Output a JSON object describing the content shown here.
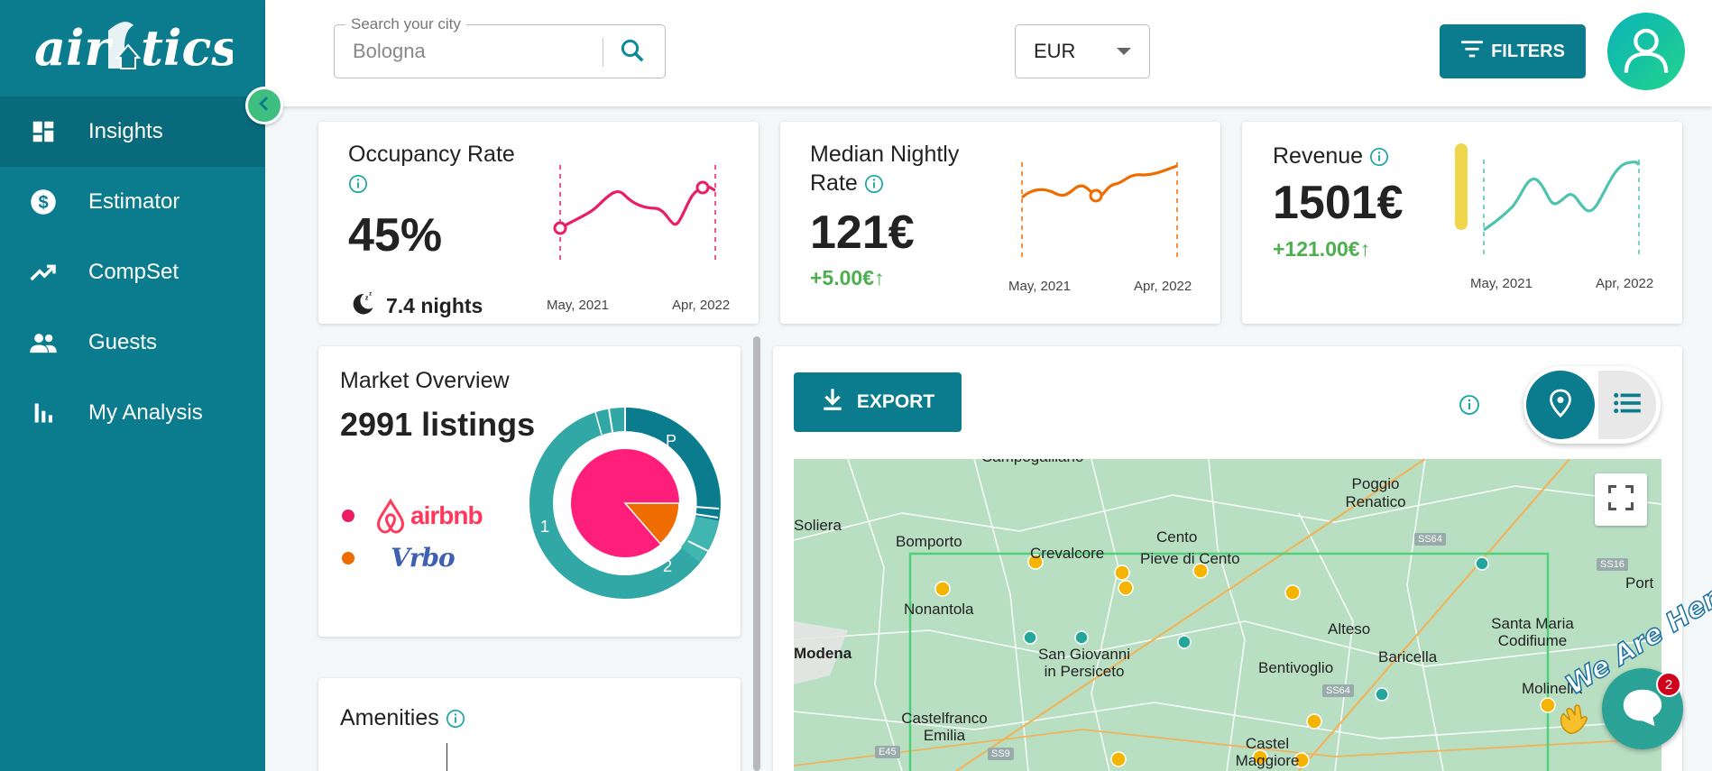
{
  "app": {
    "logo_text": "airbtics"
  },
  "sidebar": {
    "items": [
      {
        "label": "Insights",
        "icon": "dashboard-icon",
        "active": true
      },
      {
        "label": "Estimator",
        "icon": "dollar-icon"
      },
      {
        "label": "CompSet",
        "icon": "trending-up-icon"
      },
      {
        "label": "Guests",
        "icon": "people-icon"
      },
      {
        "label": "My Analysis",
        "icon": "bar-chart-icon"
      }
    ]
  },
  "header": {
    "search_legend": "Search your city",
    "search_value": "Bologna",
    "currency": "EUR",
    "filters_label": "FILTERS"
  },
  "kpis": {
    "occupancy": {
      "title": "Occupancy Rate",
      "value": "45%",
      "nights": "7.4 nights",
      "x_start": "May, 2021",
      "x_end": "Apr, 2022"
    },
    "nightly": {
      "title_line1": "Median Nightly",
      "title_line2": "Rate",
      "value": "121€",
      "delta": "+5.00€↑",
      "x_start": "May, 2021",
      "x_end": "Apr, 2022"
    },
    "revenue": {
      "title": "Revenue",
      "value": "1501€",
      "delta": "+121.00€↑",
      "x_start": "May, 2021",
      "x_end": "Apr, 2022"
    }
  },
  "market": {
    "title": "Market Overview",
    "listings": "2991 listings",
    "brands": [
      "airbnb",
      "Vrbo"
    ],
    "ring_labels": {
      "p": "P",
      "one": "1",
      "two": "2"
    }
  },
  "amenities": {
    "title": "Amenities"
  },
  "map_panel": {
    "export_label": "EXPORT",
    "places": [
      "Campogalliano",
      "Poggio Renatico",
      "Soliera",
      "Bomporto",
      "Crevalcore",
      "Cento",
      "Pieve di Cento",
      "Nonantola",
      "Modena",
      "San Giovanni in Persiceto",
      "Alteso",
      "Santa Maria Codifiume",
      "Bentivoglio",
      "Baricella",
      "Castelfranco Emilia",
      "Castel Maggiore",
      "Molinella",
      "Port"
    ],
    "roads": [
      "SS64",
      "SS16",
      "SS64",
      "E45",
      "SS9"
    ]
  },
  "chat": {
    "badge": "2",
    "greeting": "We Are Here!"
  }
}
